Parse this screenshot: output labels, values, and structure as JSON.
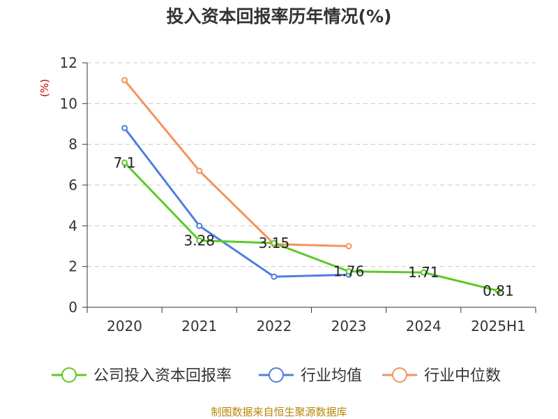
{
  "chart_data": {
    "type": "line",
    "title": "投入资本回报率历年情况(%)",
    "ylabel": "(%)",
    "categories": [
      "2020",
      "2021",
      "2022",
      "2023",
      "2024",
      "2025H1"
    ],
    "yticks": [
      "0",
      "2",
      "4",
      "6",
      "8",
      "10",
      "12"
    ],
    "ylim": [
      0,
      12
    ],
    "grid": true,
    "legend_position": "bottom",
    "series": [
      {
        "name": "公司投入资本回报率",
        "color": "#5cc928",
        "values": [
          7.1,
          3.28,
          3.15,
          1.76,
          1.71,
          0.81
        ],
        "labels": [
          "7.1",
          "3.28",
          "3.15",
          "1.76",
          "1.71",
          "0.81"
        ]
      },
      {
        "name": "行业均值",
        "color": "#4f7fdc",
        "values": [
          8.8,
          4.0,
          1.5,
          1.6,
          null,
          null
        ]
      },
      {
        "name": "行业中位数",
        "color": "#f5925e",
        "values": [
          11.15,
          6.7,
          3.1,
          3.0,
          null,
          null
        ]
      }
    ]
  },
  "source": "制图数据来自恒生聚源数据库"
}
